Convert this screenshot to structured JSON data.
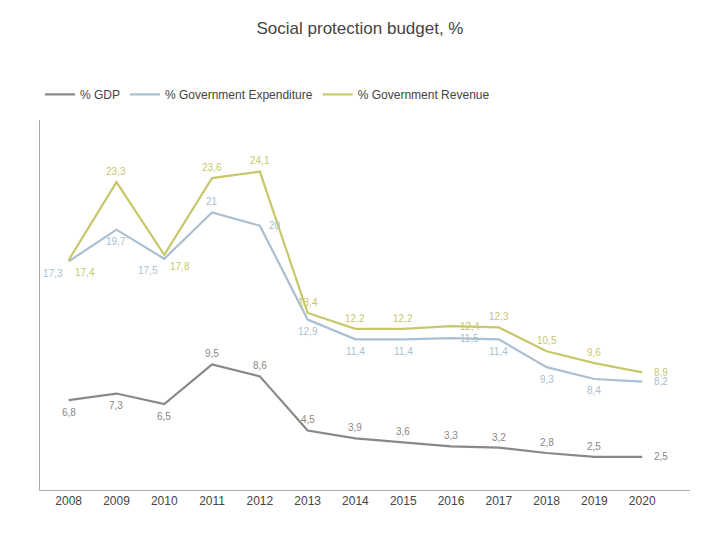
{
  "chart_data": {
    "type": "line",
    "title": "Social protection budget, %",
    "x": [
      2008,
      2009,
      2010,
      2011,
      2012,
      2013,
      2014,
      2015,
      2016,
      2017,
      2018,
      2019,
      2020
    ],
    "series": [
      {
        "name": "% GDP",
        "color": "#888888",
        "values": [
          6.8,
          7.3,
          6.5,
          9.5,
          8.6,
          4.5,
          3.9,
          3.6,
          3.3,
          3.2,
          2.8,
          2.5,
          2.5
        ],
        "value_labels": [
          "6,8",
          "7,3",
          "6,5",
          "9,5",
          "8,6",
          "4,5",
          "3,9",
          "3,6",
          "3,3",
          "3,2",
          "2,8",
          "2,5",
          "2,5"
        ]
      },
      {
        "name": "% Government Expenditure",
        "color": "#aabfcf",
        "values": [
          17.3,
          19.7,
          17.5,
          21.0,
          20.0,
          12.9,
          11.4,
          11.4,
          11.5,
          11.4,
          9.3,
          8.4,
          8.2
        ],
        "value_labels": [
          "17,3",
          "19,7",
          "17,5",
          "21",
          "20",
          "12,9",
          "11,4",
          "11,4",
          "11,5",
          "11,4",
          "9,3",
          "8,4",
          "8,2"
        ]
      },
      {
        "name": "% Government Revenue",
        "color": "#c8c86a",
        "values": [
          17.4,
          23.3,
          17.8,
          23.6,
          24.1,
          13.4,
          12.2,
          12.2,
          12.4,
          12.3,
          10.5,
          9.6,
          8.9
        ],
        "value_labels": [
          "17,4",
          "23,3",
          "17,8",
          "23,6",
          "24,1",
          "13,4",
          "12,2",
          "12,2",
          "12,4",
          "12,3",
          "10,5",
          "9,6",
          "8,9"
        ]
      }
    ],
    "xlim": [
      2007.4,
      2021.0
    ],
    "xticks": [
      2008,
      2009,
      2010,
      2011,
      2012,
      2013,
      2014,
      2015,
      2016,
      2017,
      2018,
      2019,
      2020
    ],
    "ylim": [
      0,
      28
    ],
    "tick_labels": "x",
    "grid": false,
    "legend": "upper left",
    "data_labels": true
  }
}
